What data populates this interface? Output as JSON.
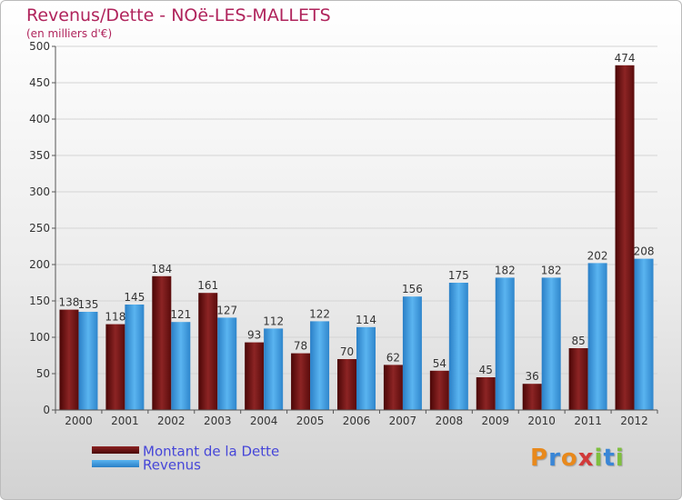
{
  "title": "Revenus/Dette - NOë-LES-MALLETS",
  "subtitle": "(en milliers d'€)",
  "colors": {
    "title": "#b0245c",
    "dette": "#7a1616",
    "revenus": "#3d9ee0",
    "legend_text": "#4646d8",
    "grid": "#d4d4d4"
  },
  "legend": {
    "dette_label": "Montant de la Dette",
    "revenus_label": "Revenus"
  },
  "logo": {
    "text": "Proxiti",
    "letters": [
      {
        "ch": "P",
        "color": "#e8891c"
      },
      {
        "ch": "r",
        "color": "#3a86d6"
      },
      {
        "ch": "o",
        "color": "#e8891c"
      },
      {
        "ch": "x",
        "color": "#d13a3a"
      },
      {
        "ch": "i",
        "color": "#7fbf3f"
      },
      {
        "ch": "t",
        "color": "#3a86d6"
      },
      {
        "ch": "i",
        "color": "#7fbf3f"
      }
    ]
  },
  "chart_data": {
    "type": "bar",
    "categories": [
      "2000",
      "2001",
      "2002",
      "2003",
      "2004",
      "2005",
      "2006",
      "2007",
      "2008",
      "2009",
      "2010",
      "2011",
      "2012"
    ],
    "series": [
      {
        "name": "Montant de la Dette",
        "values": [
          138,
          118,
          184,
          161,
          93,
          78,
          70,
          62,
          54,
          45,
          36,
          85,
          474
        ]
      },
      {
        "name": "Revenus",
        "values": [
          135,
          145,
          121,
          127,
          112,
          122,
          114,
          156,
          175,
          182,
          182,
          202,
          208
        ]
      }
    ],
    "ylim": [
      0,
      500
    ],
    "yticks": [
      0,
      50,
      100,
      150,
      200,
      250,
      300,
      350,
      400,
      450,
      500
    ],
    "grid": true,
    "legend_position": "bottom-left"
  }
}
